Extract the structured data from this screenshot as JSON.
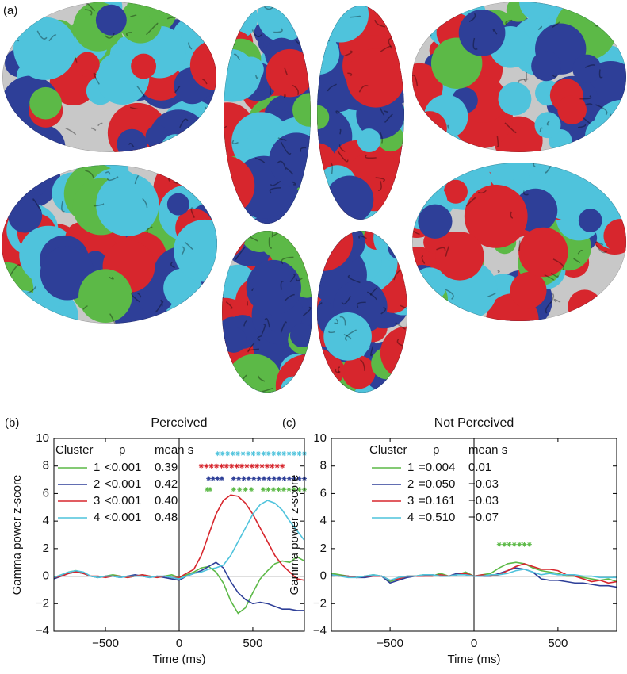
{
  "figure_label_a": "(a)",
  "chart_data": [
    {
      "type": "line",
      "panel_label": "(b)",
      "title": "Perceived",
      "xlabel": "Time (ms)",
      "ylabel": "Gamma power z-score",
      "legend_header": [
        "Cluster",
        "p",
        "mean s"
      ],
      "x": [
        -850,
        -800,
        -750,
        -700,
        -650,
        -600,
        -550,
        -500,
        -450,
        -400,
        -350,
        -300,
        -250,
        -200,
        -150,
        -100,
        -50,
        0,
        50,
        100,
        150,
        200,
        250,
        300,
        350,
        400,
        450,
        500,
        550,
        600,
        650,
        700,
        750,
        800,
        850
      ],
      "xlim": [
        -850,
        850
      ],
      "xticks": [
        {
          "value": -500,
          "label": "−500"
        },
        0,
        500
      ],
      "ylim": [
        -4,
        10
      ],
      "yticks": [
        {
          "value": -4,
          "label": "−4"
        },
        {
          "value": -2,
          "label": "−2"
        },
        0,
        2,
        4,
        6,
        8,
        10
      ],
      "series": [
        {
          "name": "1",
          "color": "#5cb947",
          "p": "<0.001",
          "mean_s": "0.39",
          "values": [
            -0.1,
            0.1,
            0.3,
            0.4,
            0.2,
            0,
            -0.1,
            0,
            0.1,
            0,
            -0.1,
            0,
            0.1,
            0,
            -0.1,
            0,
            0.1,
            -0.1,
            0.1,
            0.3,
            0.6,
            0.7,
            0.3,
            -0.5,
            -1.8,
            -2.7,
            -2.3,
            -1.2,
            -0.2,
            0.4,
            0.9,
            1.1,
            1.0,
            1.4,
            1.1
          ],
          "significance": {
            "y": 6.3,
            "ranges": [
              [
                190,
                210
              ],
              [
                370,
                490
              ],
              [
                570,
                850
              ]
            ]
          }
        },
        {
          "name": "2",
          "color": "#2e3f98",
          "p": "<0.001",
          "mean_s": "0.42",
          "values": [
            -0.2,
            0,
            0.2,
            0.3,
            0.2,
            0,
            -0.1,
            0,
            0,
            -0.1,
            0,
            0.1,
            0,
            -0.1,
            0,
            -0.1,
            -0.2,
            -0.3,
            0,
            0.2,
            0.4,
            0.7,
            1.0,
            0.6,
            -0.4,
            -1.2,
            -1.7,
            -2.0,
            -1.9,
            -2.0,
            -2.2,
            -2.4,
            -2.4,
            -2.5,
            -2.5
          ],
          "significance": {
            "y": 7.1,
            "ranges": [
              [
                200,
                290
              ],
              [
                370,
                850
              ]
            ]
          }
        },
        {
          "name": "3",
          "color": "#d7262d",
          "p": "<0.001",
          "mean_s": "0.40",
          "values": [
            -0.1,
            0,
            0.2,
            0.3,
            0.2,
            0,
            0,
            -0.1,
            0,
            0,
            -0.1,
            0,
            0.1,
            0,
            -0.1,
            0,
            -0.1,
            -0.1,
            0.2,
            0.5,
            1.5,
            3.0,
            4.5,
            5.5,
            5.9,
            5.8,
            5.3,
            4.5,
            3.5,
            2.5,
            1.5,
            0.8,
            0.3,
            -0.2,
            -0.3
          ],
          "significance": {
            "y": 8.0,
            "ranges": [
              [
                150,
                700
              ]
            ]
          }
        },
        {
          "name": "4",
          "color": "#4fc3dc",
          "p": "<0.001",
          "mean_s": "0.48",
          "values": [
            -0.1,
            0.1,
            0.3,
            0.4,
            0.3,
            0,
            -0.1,
            0,
            0,
            -0.1,
            0,
            0,
            0,
            -0.1,
            0,
            0,
            -0.1,
            -0.2,
            0,
            0.2,
            0.3,
            0.5,
            0.6,
            0.8,
            1.5,
            2.5,
            3.5,
            4.5,
            5.2,
            5.5,
            5.3,
            4.8,
            4.0,
            3.3,
            2.6
          ],
          "significance": {
            "y": 8.9,
            "ranges": [
              [
                260,
                850
              ]
            ]
          }
        }
      ]
    },
    {
      "type": "line",
      "panel_label": "(c)",
      "title": "Not Perceived",
      "xlabel": "Time (ms)",
      "ylabel": "Gamma power z-score",
      "legend_header": [
        "Cluster",
        "p",
        "mean s"
      ],
      "x": [
        -850,
        -800,
        -750,
        -700,
        -650,
        -600,
        -550,
        -500,
        -450,
        -400,
        -350,
        -300,
        -250,
        -200,
        -150,
        -100,
        -50,
        0,
        50,
        100,
        150,
        200,
        250,
        300,
        350,
        400,
        450,
        500,
        550,
        600,
        650,
        700,
        750,
        800,
        850
      ],
      "xlim": [
        -850,
        850
      ],
      "xticks": [
        {
          "value": -500,
          "label": "−500"
        },
        0,
        500
      ],
      "ylim": [
        -4,
        10
      ],
      "yticks": [
        {
          "value": -4,
          "label": "−4"
        },
        {
          "value": -2,
          "label": "−2"
        },
        0,
        2,
        4,
        6,
        8,
        10
      ],
      "series": [
        {
          "name": "1",
          "color": "#5cb947",
          "p": "=0.004",
          "mean_s": "0.01",
          "values": [
            0.2,
            0.1,
            0,
            -0.1,
            0,
            0.1,
            0,
            -0.4,
            -0.2,
            0,
            0,
            0.1,
            0,
            0.2,
            0,
            0.1,
            0.3,
            0,
            0.1,
            0.2,
            0.6,
            0.9,
            1.0,
            0.9,
            0.6,
            0.4,
            0.3,
            0.2,
            0,
            0,
            -0.1,
            -0.2,
            -0.3,
            -0.2,
            -0.4
          ],
          "significance": {
            "y": 2.3,
            "ranges": [
              [
                150,
                330
              ]
            ]
          }
        },
        {
          "name": "2",
          "color": "#2e3f98",
          "p": "=0.050",
          "mean_s": "−0.03",
          "values": [
            0.1,
            0,
            0,
            -0.1,
            -0.1,
            0,
            0,
            -0.5,
            -0.3,
            -0.1,
            0,
            0,
            0.1,
            0,
            0,
            0.2,
            0.1,
            0,
            0,
            0,
            0.2,
            0.4,
            0.6,
            0.5,
            0.3,
            -0.2,
            -0.3,
            -0.3,
            -0.4,
            -0.5,
            -0.5,
            -0.6,
            -0.7,
            -0.7,
            -0.8
          ]
        },
        {
          "name": "3",
          "color": "#d7262d",
          "p": "=0.161",
          "mean_s": "−0.03",
          "values": [
            0.1,
            0,
            0,
            -0.1,
            0,
            0,
            0,
            -0.3,
            -0.2,
            0,
            0,
            0,
            0,
            0.1,
            0,
            0.1,
            0.2,
            0,
            0.1,
            0,
            0.1,
            0.4,
            0.7,
            0.9,
            0.7,
            0.5,
            0.5,
            0.4,
            0.1,
            0,
            -0.2,
            -0.4,
            -0.3,
            -0.5,
            -0.4
          ]
        },
        {
          "name": "4",
          "color": "#4fc3dc",
          "p": "=0.510",
          "mean_s": "−0.07",
          "values": [
            0.1,
            0,
            -0.1,
            -0.1,
            0,
            0.1,
            0,
            -0.3,
            -0.1,
            0,
            0,
            0.1,
            0.1,
            0,
            0,
            0.1,
            0.1,
            0,
            0,
            0.1,
            0.1,
            0.2,
            0.4,
            0.5,
            0.3,
            0.1,
            0.2,
            0.1,
            0.1,
            0.1,
            0,
            0,
            -0.1,
            -0.1,
            -0.1
          ]
        }
      ]
    }
  ]
}
